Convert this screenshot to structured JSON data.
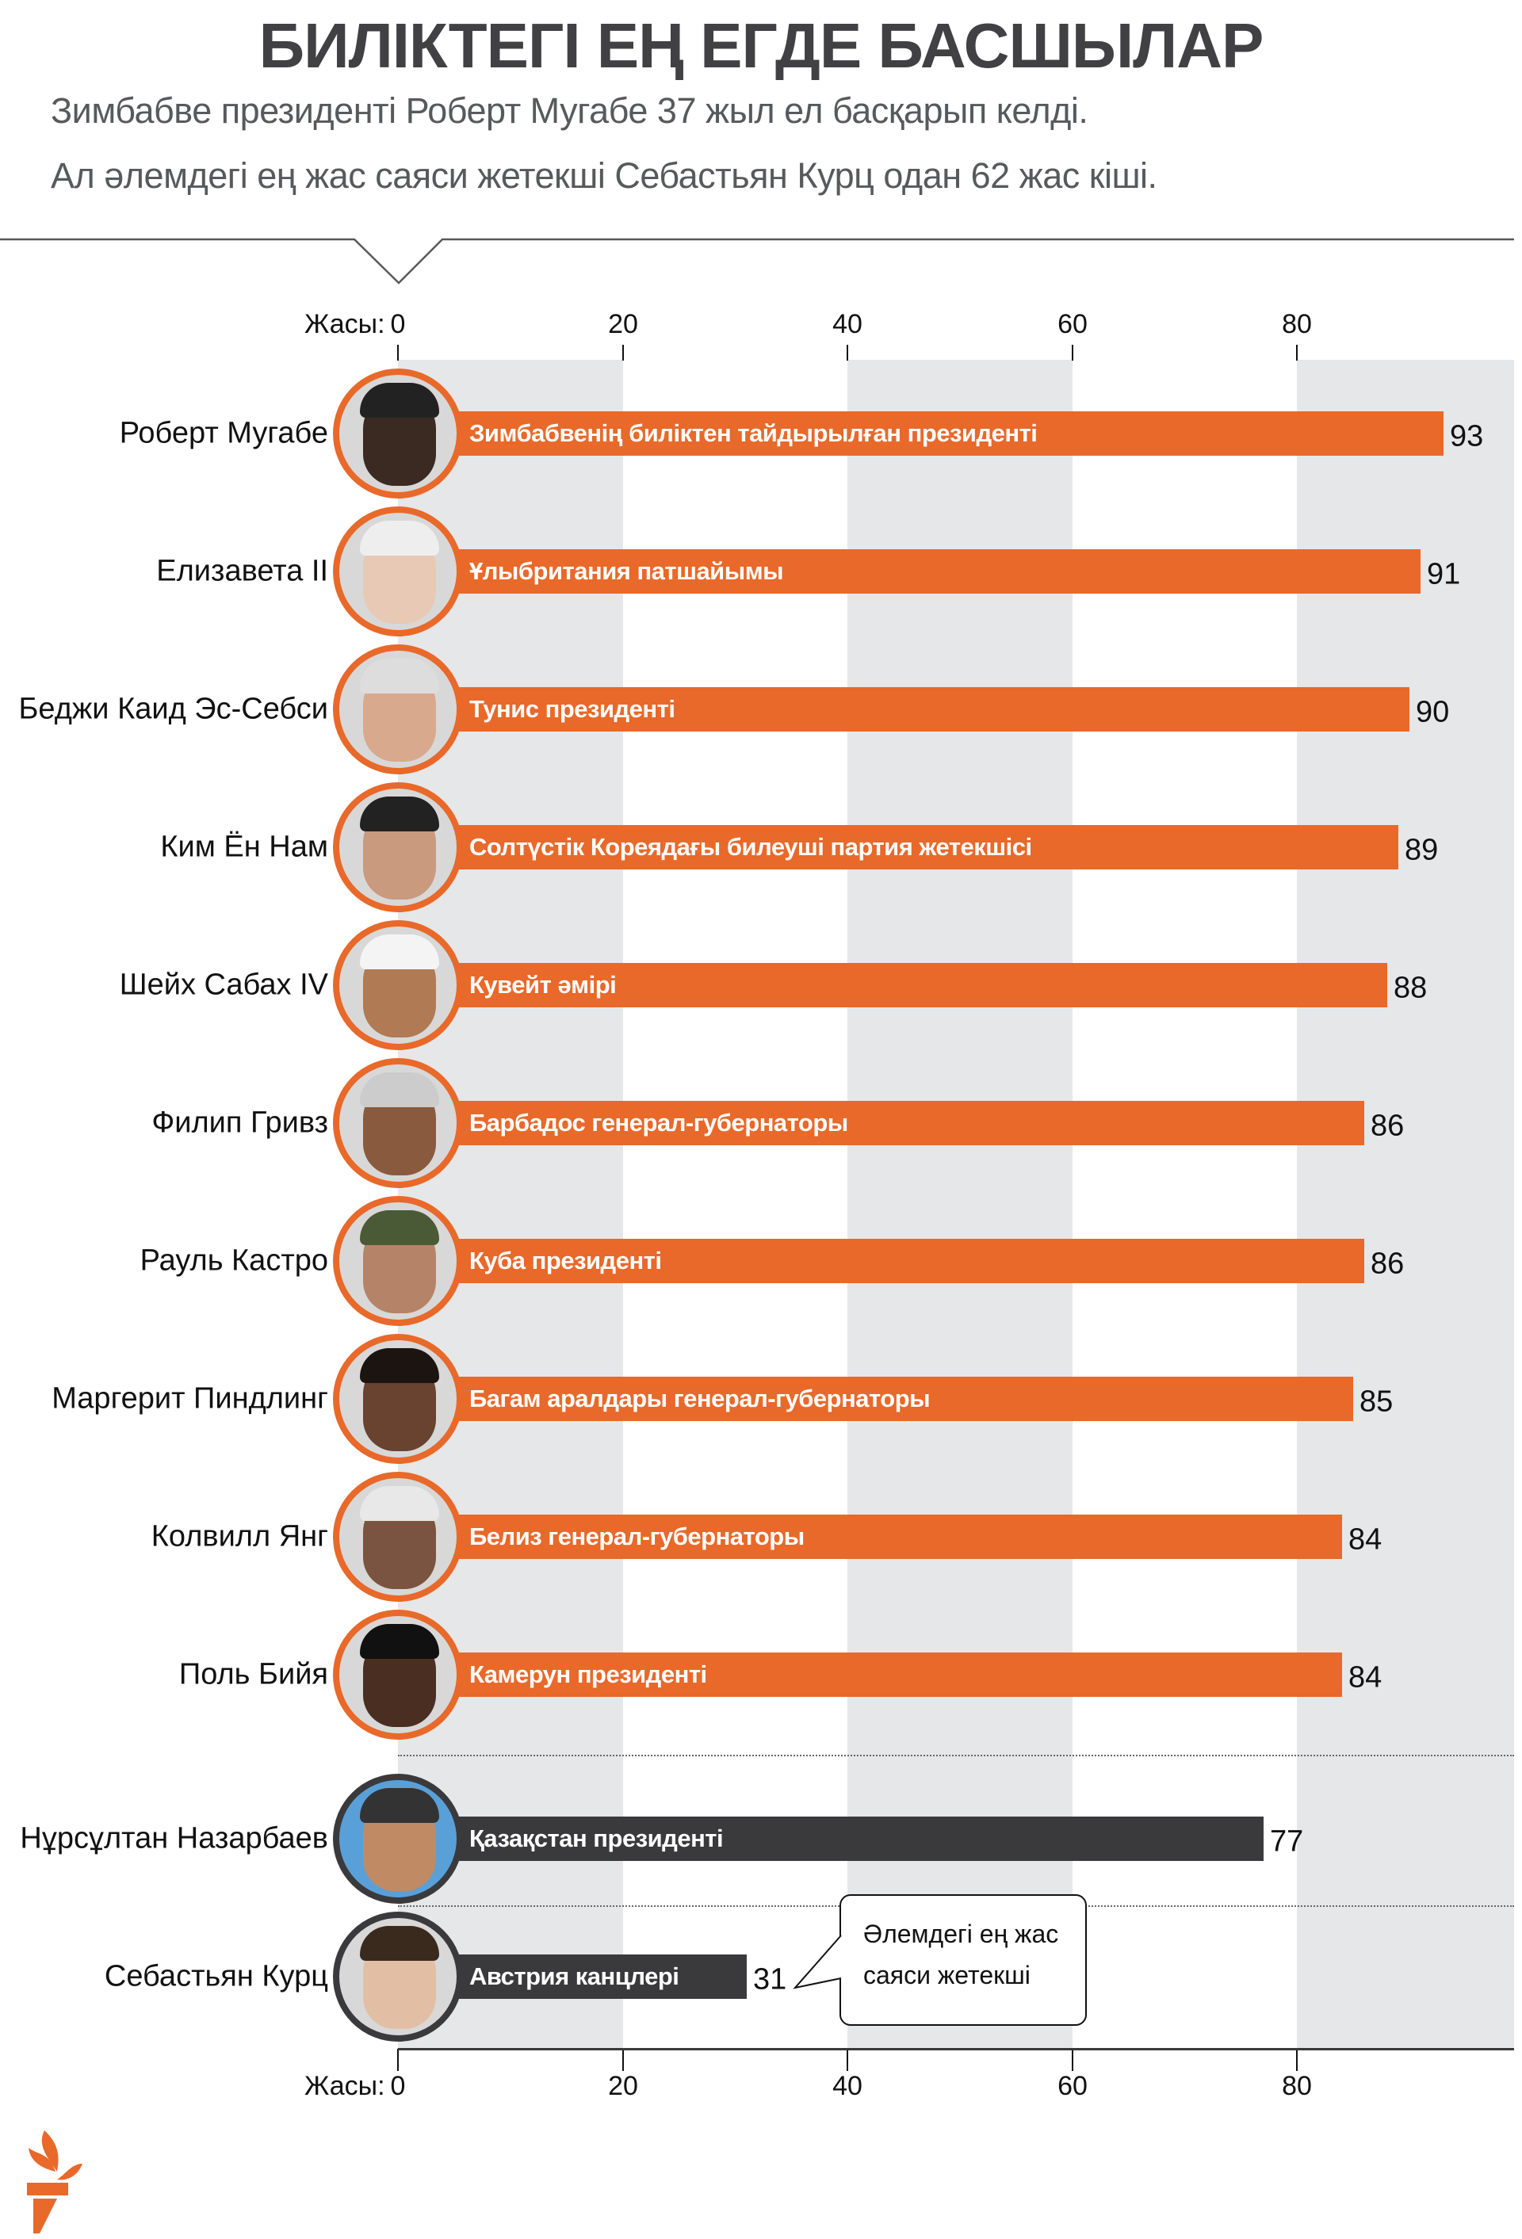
{
  "header": {
    "title": "БИЛІКТЕГІ ЕҢ ЕГДЕ БАСШЫЛАР",
    "subtitle_line1": "Зимбабве президенті Роберт Мугабе 37 жыл ел басқарып келді.",
    "subtitle_line2": "Ал әлемдегі ең жас саяси жетекші Себастьян Курц одан 62 жас кіші."
  },
  "chart_data": {
    "type": "bar",
    "orientation": "horizontal",
    "xlabel": "Жасы:",
    "xlim": [
      0,
      100
    ],
    "ticks": [
      "0",
      "20",
      "40",
      "60",
      "80"
    ],
    "grid": "alternating vertical bands",
    "colors": {
      "oldest": "#e8692a",
      "highlight": "#3a3a3c",
      "band": "#e6e7e8"
    },
    "rows": [
      {
        "name": "Роберт Мугабе",
        "role": "Зимбабвенің биліктен тайдырылған президенті",
        "age": 93,
        "group": "oldest"
      },
      {
        "name": "Елизавета II",
        "role": "Ұлыбритания патшайымы",
        "age": 91,
        "group": "oldest"
      },
      {
        "name": "Беджи Каид Эс-Себси",
        "role": "Тунис президенті",
        "age": 90,
        "group": "oldest"
      },
      {
        "name": "Ким Ён Нам",
        "role": "Солтүстік Кореядағы билеуші партия жетекшісі",
        "age": 89,
        "group": "oldest"
      },
      {
        "name": "Шейх Сабах IV",
        "role": "Кувейт әмірі",
        "age": 88,
        "group": "oldest"
      },
      {
        "name": "Филип Гривз",
        "role": "Барбадос генерал-губернаторы",
        "age": 86,
        "group": "oldest"
      },
      {
        "name": "Рауль Кастро",
        "role": "Куба президенті",
        "age": 86,
        "group": "oldest"
      },
      {
        "name": "Маргерит Пиндлинг",
        "role": "Багам аралдары генерал-губернаторы",
        "age": 85,
        "group": "oldest"
      },
      {
        "name": "Колвилл Янг",
        "role": "Белиз генерал-губернаторы",
        "age": 84,
        "group": "oldest"
      },
      {
        "name": "Поль Бийя",
        "role": "Камерун президенті",
        "age": 84,
        "group": "oldest"
      },
      {
        "name": "Нұрсұлтан Назарбаев",
        "role": "Қазақстан президенті",
        "age": 77,
        "group": "highlight"
      },
      {
        "name": "Себастьян Курц",
        "role": "Австрия канцлері",
        "age": 31,
        "group": "highlight"
      }
    ],
    "annotation": {
      "line1": "Әлемдегі ең жас",
      "line2": "саяси жетекші"
    }
  },
  "logo": {
    "icon": "torch-logo-icon",
    "color": "#e8692a"
  }
}
